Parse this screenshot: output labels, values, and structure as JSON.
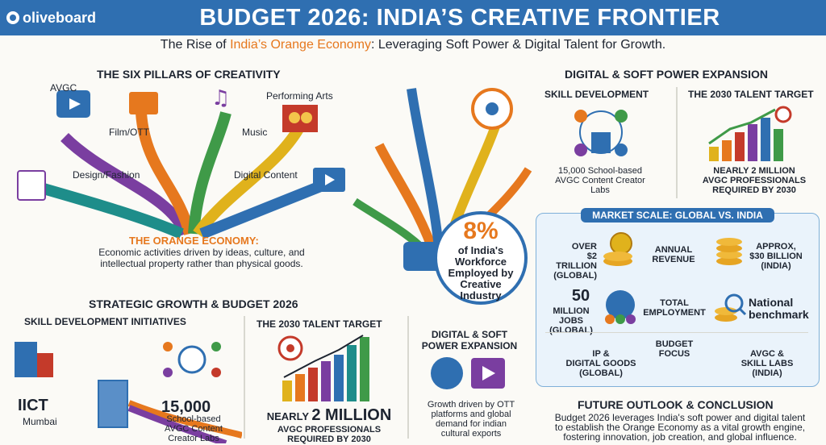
{
  "header": {
    "brand": "oliveboard",
    "title": "BUDGET 2026: INDIA’S CREATIVE FRONTIER"
  },
  "subtitle": {
    "pre": "The Rise of ",
    "highlight": "India’s Orange Economy",
    "post": ": Leveraging Soft Power & Digital Talent for Growth."
  },
  "pillars": {
    "title": "THE SIX PILLARS OF CREATIVITY",
    "items": [
      "AVGC",
      "Film/OTT",
      "Music",
      "Performing Arts",
      "Design/Fashion",
      "Digital Content"
    ],
    "orange_title": "THE ORANGE ECONOMY:",
    "orange_desc_1": "Economic activities driven by ideas, culture, and",
    "orange_desc_2": "intellectual property rather than physical goods."
  },
  "fountain": {
    "pct": "8%",
    "line1": "of India's",
    "line2": "Workforce",
    "line3": "Employed by",
    "line4": "Creative",
    "line5": "Industry"
  },
  "digital": {
    "title": "DIGITAL & SOFT POWER EXPANSION",
    "skill_title": "SKILL DEVELOPMENT",
    "skill_l1": "15,000 School-based",
    "skill_l2": "AVGC Content Creator",
    "skill_l3": "Labs",
    "talent_title": "THE 2030 TALENT TARGET",
    "talent_l1": "NEARLY 2 MILLION",
    "talent_l2": "AVGC PROFESSIONALS",
    "talent_l3": "REQUIRED BY 2030"
  },
  "market": {
    "title": "MARKET SCALE: GLOBAL VS. INDIA",
    "rev_global_1": "OVER",
    "rev_global_2": "$2 TRILLION",
    "rev_global_3": "(GLOBAL)",
    "rev_label_1": "ANNUAL",
    "rev_label_2": "REVENUE",
    "rev_india_1": "APPROX,",
    "rev_india_2": "$30 BILLION",
    "rev_india_3": "(INDIA)",
    "emp_big": "50",
    "emp_global_2": "MILLION JOBS",
    "emp_global_3": "(GLOBAL)",
    "emp_label_1": "TOTAL",
    "emp_label_2": "EMPLOYMENT",
    "emp_india_1": "National",
    "emp_india_2": "benchmark",
    "focus_label": "BUDGET FOCUS",
    "focus_global_1": "IP &",
    "focus_global_2": "DIGITAL GOODS",
    "focus_global_3": "(GLOBAL)",
    "focus_india_1": "AVGC &",
    "focus_india_2": "SKILL LABS",
    "focus_india_3": "(INDIA)"
  },
  "strategic": {
    "title": "STRATEGIC GROWTH & BUDGET 2026",
    "skill_title": "SKILL DEVELOPMENT INITIATIVES",
    "iict": "IICT",
    "mumbai": "Mumbai",
    "labs_big": "15,000",
    "labs_1": "School-based",
    "labs_2": "AVGC Content",
    "labs_3": "Creator Labs",
    "talent_title": "THE 2030 TALENT TARGET",
    "talent_pre": "NEARLY ",
    "talent_big": "2 MILLION",
    "talent_2": "AVGC PROFESSIONALS",
    "talent_3": "REQUIRED BY 2030",
    "dig_title_1": "DIGITAL & SOFT",
    "dig_title_2": "POWER EXPANSION",
    "dig_1": "Growth driven by OTT",
    "dig_2": "platforms and global",
    "dig_3": "demand for indian",
    "dig_4": "cultural exports"
  },
  "future": {
    "title": "FUTURE OUTLOOK & CONCLUSION",
    "l1": "Budget 2026 leverages India's soft power and digital talent",
    "l2": "to establish the Orange Economy as a vital growth engine,",
    "l3": "fostering innovation, job creation, and global influence."
  },
  "colors": {
    "blue": "#2f6fb1",
    "orange": "#e6781e",
    "green": "#3f9a48",
    "purple": "#7a3ea0",
    "teal": "#1e8d8a"
  }
}
